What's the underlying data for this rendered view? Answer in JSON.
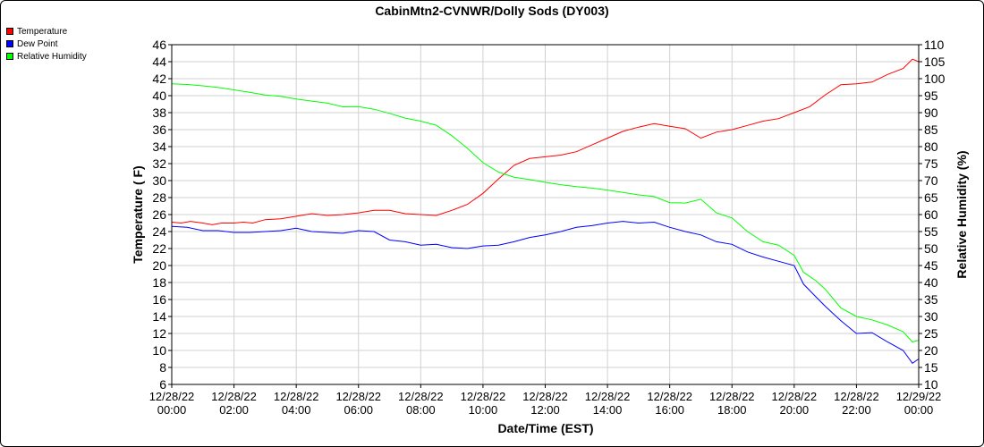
{
  "chart_data": {
    "type": "line",
    "title": "CabinMtn2-CVNWR/Dolly Sods (DY003)",
    "xlabel": "Date/Time (EST)",
    "ylabel_left": "Temperature ( F)",
    "ylabel_right": "Relative Humidity (%)",
    "ylim_left": [
      6,
      46
    ],
    "ylim_right": [
      10,
      110
    ],
    "yticks_left": [
      "6",
      "8",
      "10",
      "12",
      "14",
      "16",
      "18",
      "20",
      "22",
      "24",
      "26",
      "28",
      "30",
      "32",
      "34",
      "36",
      "38",
      "40",
      "42",
      "44",
      "46"
    ],
    "yticks_right": [
      "10",
      "15",
      "20",
      "25",
      "30",
      "35",
      "40",
      "45",
      "50",
      "55",
      "60",
      "65",
      "70",
      "75",
      "80",
      "85",
      "90",
      "95",
      "100",
      "105",
      "110"
    ],
    "x_range_hours": [
      0,
      24
    ],
    "xticks": [
      {
        "date": "12/28/22",
        "time": "00:00"
      },
      {
        "date": "12/28/22",
        "time": "02:00"
      },
      {
        "date": "12/28/22",
        "time": "04:00"
      },
      {
        "date": "12/28/22",
        "time": "06:00"
      },
      {
        "date": "12/28/22",
        "time": "08:00"
      },
      {
        "date": "12/28/22",
        "time": "10:00"
      },
      {
        "date": "12/28/22",
        "time": "12:00"
      },
      {
        "date": "12/28/22",
        "time": "14:00"
      },
      {
        "date": "12/28/22",
        "time": "16:00"
      },
      {
        "date": "12/28/22",
        "time": "18:00"
      },
      {
        "date": "12/28/22",
        "time": "20:00"
      },
      {
        "date": "12/28/22",
        "time": "22:00"
      },
      {
        "date": "12/29/22",
        "time": "00:00"
      }
    ],
    "grid": true,
    "legend_position": "top-left",
    "series": [
      {
        "name": "Temperature",
        "axis": "left",
        "color": "#ff0000",
        "points": [
          [
            0,
            25.1
          ],
          [
            0.3,
            25.0
          ],
          [
            0.6,
            25.2
          ],
          [
            1,
            25.0
          ],
          [
            1.3,
            24.8
          ],
          [
            1.6,
            25.0
          ],
          [
            2,
            25.0
          ],
          [
            2.3,
            25.1
          ],
          [
            2.6,
            25.0
          ],
          [
            3,
            25.4
          ],
          [
            3.5,
            25.5
          ],
          [
            4,
            25.8
          ],
          [
            4.5,
            26.1
          ],
          [
            5,
            25.9
          ],
          [
            5.5,
            26.0
          ],
          [
            6,
            26.2
          ],
          [
            6.5,
            26.5
          ],
          [
            7,
            26.5
          ],
          [
            7.5,
            26.1
          ],
          [
            8,
            26.0
          ],
          [
            8.5,
            25.9
          ],
          [
            9,
            26.5
          ],
          [
            9.5,
            27.2
          ],
          [
            10,
            28.5
          ],
          [
            10.5,
            30.2
          ],
          [
            11,
            31.8
          ],
          [
            11.5,
            32.6
          ],
          [
            12,
            32.8
          ],
          [
            12.5,
            33.0
          ],
          [
            13,
            33.4
          ],
          [
            13.5,
            34.2
          ],
          [
            14,
            35.0
          ],
          [
            14.5,
            35.8
          ],
          [
            15,
            36.3
          ],
          [
            15.5,
            36.7
          ],
          [
            16,
            36.4
          ],
          [
            16.5,
            36.1
          ],
          [
            17,
            35.0
          ],
          [
            17.5,
            35.7
          ],
          [
            18,
            36.0
          ],
          [
            18.5,
            36.5
          ],
          [
            19,
            37.0
          ],
          [
            19.5,
            37.3
          ],
          [
            20,
            38.0
          ],
          [
            20.5,
            38.7
          ],
          [
            21,
            40.1
          ],
          [
            21.5,
            41.3
          ],
          [
            22,
            41.4
          ],
          [
            22.5,
            41.6
          ],
          [
            23,
            42.5
          ],
          [
            23.5,
            43.2
          ],
          [
            23.8,
            44.3
          ],
          [
            24,
            44.0
          ]
        ]
      },
      {
        "name": "Dew Point",
        "axis": "left",
        "color": "#0000ff",
        "points": [
          [
            0,
            24.6
          ],
          [
            0.5,
            24.5
          ],
          [
            1,
            24.1
          ],
          [
            1.5,
            24.1
          ],
          [
            2,
            23.9
          ],
          [
            2.5,
            23.9
          ],
          [
            3,
            24.0
          ],
          [
            3.5,
            24.1
          ],
          [
            4,
            24.4
          ],
          [
            4.5,
            24.0
          ],
          [
            5,
            23.9
          ],
          [
            5.5,
            23.8
          ],
          [
            6,
            24.1
          ],
          [
            6.5,
            24.0
          ],
          [
            7,
            23.0
          ],
          [
            7.5,
            22.8
          ],
          [
            8,
            22.4
          ],
          [
            8.5,
            22.5
          ],
          [
            9,
            22.1
          ],
          [
            9.5,
            22.0
          ],
          [
            10,
            22.3
          ],
          [
            10.5,
            22.4
          ],
          [
            11,
            22.8
          ],
          [
            11.5,
            23.3
          ],
          [
            12,
            23.6
          ],
          [
            12.5,
            24.0
          ],
          [
            13,
            24.5
          ],
          [
            13.5,
            24.7
          ],
          [
            14,
            25.0
          ],
          [
            14.5,
            25.2
          ],
          [
            15,
            25.0
          ],
          [
            15.5,
            25.1
          ],
          [
            16,
            24.5
          ],
          [
            16.5,
            24.0
          ],
          [
            17,
            23.6
          ],
          [
            17.5,
            22.8
          ],
          [
            18,
            22.5
          ],
          [
            18.5,
            21.6
          ],
          [
            19,
            21.0
          ],
          [
            19.5,
            20.5
          ],
          [
            20,
            20.0
          ],
          [
            20.3,
            17.8
          ],
          [
            20.7,
            16.3
          ],
          [
            21,
            15.2
          ],
          [
            21.5,
            13.5
          ],
          [
            22,
            12.0
          ],
          [
            22.5,
            12.1
          ],
          [
            23,
            11.0
          ],
          [
            23.5,
            10.0
          ],
          [
            23.8,
            8.5
          ],
          [
            24,
            9.0
          ]
        ]
      },
      {
        "name": "Relative Humidity",
        "axis": "right",
        "color": "#00ff00",
        "points": [
          [
            0,
            98.5
          ],
          [
            0.5,
            98.3
          ],
          [
            1,
            97.9
          ],
          [
            1.5,
            97.4
          ],
          [
            2,
            96.7
          ],
          [
            2.5,
            96.0
          ],
          [
            3,
            95.2
          ],
          [
            3.5,
            94.8
          ],
          [
            4,
            94.0
          ],
          [
            4.5,
            93.4
          ],
          [
            5,
            92.8
          ],
          [
            5.5,
            91.7
          ],
          [
            6,
            91.8
          ],
          [
            6.5,
            91.0
          ],
          [
            7,
            89.8
          ],
          [
            7.5,
            88.4
          ],
          [
            8,
            87.5
          ],
          [
            8.5,
            86.3
          ],
          [
            9,
            83.2
          ],
          [
            9.5,
            79.5
          ],
          [
            10,
            75.3
          ],
          [
            10.5,
            72.5
          ],
          [
            11,
            71.0
          ],
          [
            11.5,
            70.3
          ],
          [
            12,
            69.5
          ],
          [
            12.5,
            68.8
          ],
          [
            13,
            68.2
          ],
          [
            13.5,
            67.8
          ],
          [
            14,
            67.2
          ],
          [
            14.5,
            66.5
          ],
          [
            15,
            65.8
          ],
          [
            15.5,
            65.3
          ],
          [
            16,
            63.5
          ],
          [
            16.5,
            63.4
          ],
          [
            17,
            64.5
          ],
          [
            17.5,
            60.5
          ],
          [
            18,
            59.0
          ],
          [
            18.5,
            55.0
          ],
          [
            19,
            52.0
          ],
          [
            19.5,
            51.0
          ],
          [
            20,
            48.0
          ],
          [
            20.3,
            43.0
          ],
          [
            20.7,
            40.5
          ],
          [
            21,
            38.0
          ],
          [
            21.5,
            32.5
          ],
          [
            22,
            30.0
          ],
          [
            22.5,
            29.0
          ],
          [
            23,
            27.5
          ],
          [
            23.5,
            25.5
          ],
          [
            23.8,
            22.5
          ],
          [
            24,
            23.0
          ]
        ]
      }
    ]
  }
}
